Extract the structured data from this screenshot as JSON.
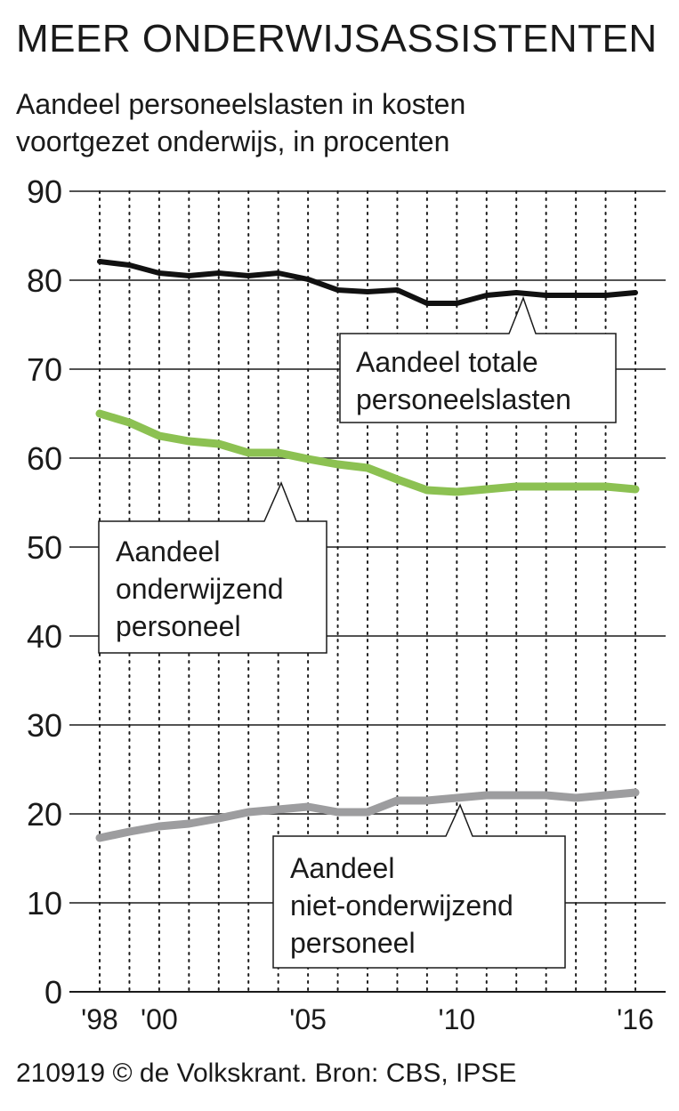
{
  "header": {
    "title": "MEER ONDERWIJSASSISTENTEN",
    "subtitle_lines": [
      "Aandeel personeelslasten in kosten",
      "voortgezet onderwijs, in procenten"
    ]
  },
  "footer": {
    "credit": "210919 © de Volkskrant. Bron: CBS, IPSE"
  },
  "chart_data": {
    "type": "line",
    "title": "MEER ONDERWIJSASSISTENTEN",
    "subtitle": "Aandeel personeelslasten in kosten voortgezet onderwijs, in procenten",
    "xlabel": "",
    "ylabel": "",
    "ylim": [
      0,
      90
    ],
    "yticks": [
      0,
      10,
      20,
      30,
      40,
      50,
      60,
      70,
      80,
      90
    ],
    "xlim": [
      1998,
      2016
    ],
    "x": [
      1998,
      1999,
      2000,
      2001,
      2002,
      2003,
      2004,
      2005,
      2006,
      2007,
      2008,
      2009,
      2010,
      2011,
      2012,
      2013,
      2014,
      2015,
      2016
    ],
    "xtick_labels": [
      {
        "x": 1998,
        "label": "'98"
      },
      {
        "x": 2000,
        "label": "'00"
      },
      {
        "x": 2005,
        "label": "'05"
      },
      {
        "x": 2010,
        "label": "'10"
      },
      {
        "x": 2016,
        "label": "'16"
      }
    ],
    "grid": {
      "horizontal": true,
      "vertical_dotted": true
    },
    "series": [
      {
        "name": "Aandeel totale personeelslasten",
        "label_lines": [
          "Aandeel totale",
          "personeelslasten"
        ],
        "color": "#111111",
        "values": [
          82.1,
          81.7,
          80.8,
          80.5,
          80.8,
          80.5,
          80.8,
          80.1,
          78.9,
          78.7,
          78.9,
          77.4,
          77.4,
          78.3,
          78.6,
          78.3,
          78.3,
          78.3,
          78.6
        ]
      },
      {
        "name": "Aandeel onderwijzend personeel",
        "label_lines": [
          "Aandeel",
          "onderwijzend",
          "personeel"
        ],
        "color": "#8cc152",
        "values": [
          65.0,
          64.0,
          62.5,
          61.9,
          61.6,
          60.6,
          60.6,
          59.9,
          59.3,
          58.9,
          57.6,
          56.4,
          56.2,
          56.5,
          56.8,
          56.8,
          56.8,
          56.8,
          56.5
        ]
      },
      {
        "name": "Aandeel niet-onderwijzend personeel",
        "label_lines": [
          "Aandeel",
          "niet-onderwijzend",
          "personeel"
        ],
        "color": "#9d9d9f",
        "values": [
          17.3,
          18.0,
          18.6,
          18.9,
          19.5,
          20.2,
          20.5,
          20.8,
          20.2,
          20.2,
          21.5,
          21.5,
          21.8,
          22.1,
          22.1,
          22.1,
          21.8,
          22.1,
          22.4
        ]
      }
    ],
    "colors": {
      "grid": "#1a1a1a",
      "background": "#ffffff"
    }
  }
}
